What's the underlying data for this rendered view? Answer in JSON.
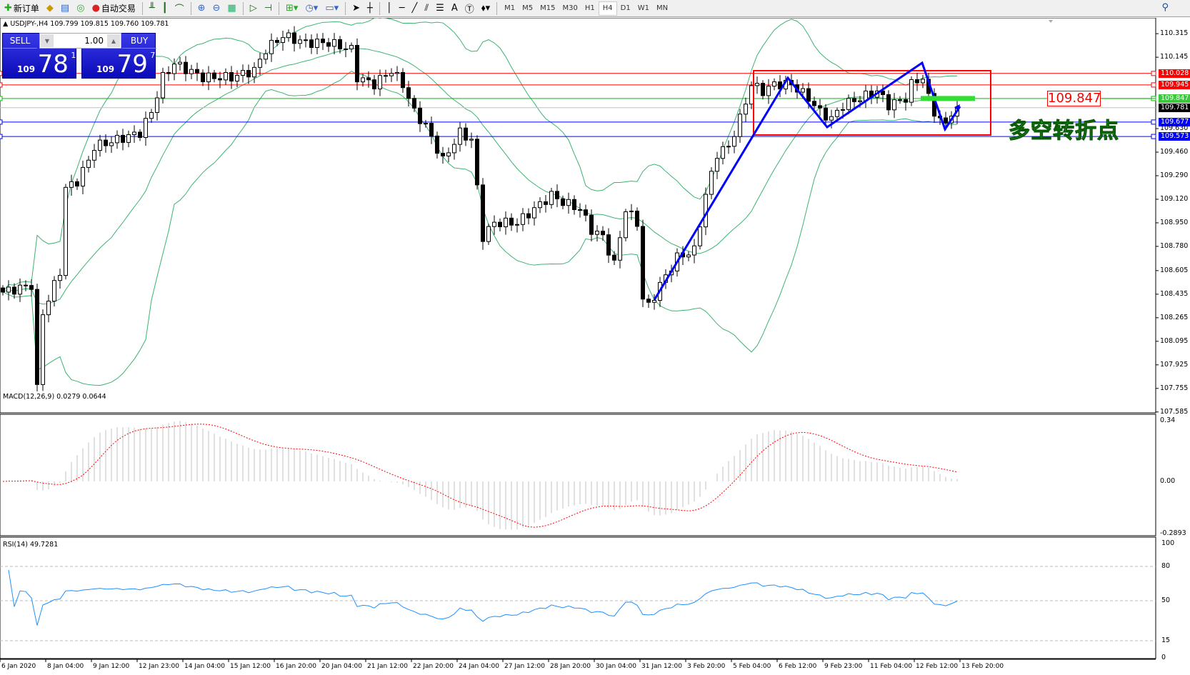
{
  "toolbar": {
    "new_order": "新订单",
    "auto_trading": "自动交易",
    "timeframes": [
      "M1",
      "M5",
      "M15",
      "M30",
      "H1",
      "H4",
      "D1",
      "W1",
      "MN"
    ],
    "active_timeframe": "H4"
  },
  "chart_header": "USDJPY-,H4  109.799 109.815 109.760 109.781",
  "one_click": {
    "sell_label": "SELL",
    "buy_label": "BUY",
    "lot": "1.00",
    "sell_small": "109",
    "sell_big": "78",
    "sell_pip": "1",
    "buy_small": "109",
    "buy_big": "79",
    "buy_pip": "7"
  },
  "price_axis": [
    "110.315",
    "110.145",
    "109.460",
    "109.290",
    "109.120",
    "108.950",
    "108.780",
    "108.605",
    "108.435",
    "108.265",
    "108.095",
    "107.925",
    "107.755",
    "107.585",
    "109.630"
  ],
  "levels": [
    {
      "value": "110.028",
      "color": "#ff0000"
    },
    {
      "value": "109.945",
      "color": "#ff0000"
    },
    {
      "value": "109.847",
      "color": "#00c000"
    },
    {
      "value": "109.677",
      "color": "#0000ff"
    },
    {
      "value": "109.573",
      "color": "#0000ff"
    }
  ],
  "bid": {
    "value": "109.781",
    "color": "#000000"
  },
  "annotation_price": "109.847",
  "annotation_text": "多空转折点",
  "macd": {
    "label": "MACD(12,26,9) 0.0279 0.0644",
    "axis": [
      "0.34",
      "0.00",
      "-0.2893"
    ]
  },
  "rsi": {
    "label": "RSI(14) 49.7281",
    "axis": [
      "100",
      "80",
      "50",
      "15",
      "0"
    ]
  },
  "time_axis": [
    "6 Jan 2020",
    "8 Jan 04:00",
    "9 Jan 12:00",
    "12 Jan 23:00",
    "14 Jan 04:00",
    "15 Jan 12:00",
    "16 Jan 20:00",
    "20 Jan 04:00",
    "21 Jan 12:00",
    "22 Jan 20:00",
    "24 Jan 04:00",
    "27 Jan 12:00",
    "28 Jan 20:00",
    "30 Jan 04:00",
    "31 Jan 12:00",
    "3 Feb 20:00",
    "5 Feb 04:00",
    "6 Feb 12:00",
    "9 Feb 23:00",
    "11 Feb 04:00",
    "12 Feb 12:00",
    "13 Feb 20:00"
  ],
  "close_keypoints": [
    [
      0,
      108.45
    ],
    [
      5,
      108.5
    ],
    [
      6,
      107.75
    ],
    [
      7,
      108.3
    ],
    [
      8,
      108.4
    ],
    [
      10,
      108.6
    ],
    [
      11,
      109.2
    ],
    [
      13,
      109.25
    ],
    [
      15,
      109.4
    ],
    [
      16,
      109.5
    ],
    [
      20,
      109.55
    ],
    [
      24,
      109.6
    ],
    [
      26,
      109.75
    ],
    [
      28,
      110.0
    ],
    [
      30,
      110.1
    ],
    [
      35,
      110.0
    ],
    [
      40,
      110.0
    ],
    [
      44,
      110.05
    ],
    [
      46,
      110.2
    ],
    [
      49,
      110.3
    ],
    [
      53,
      110.25
    ],
    [
      57,
      110.25
    ],
    [
      61,
      110.2
    ],
    [
      62,
      110.0
    ],
    [
      65,
      109.95
    ],
    [
      68,
      110.05
    ],
    [
      70,
      109.95
    ],
    [
      72,
      109.75
    ],
    [
      74,
      109.65
    ],
    [
      77,
      109.4
    ],
    [
      80,
      109.6
    ],
    [
      82,
      109.55
    ],
    [
      83,
      109.2
    ],
    [
      84,
      108.85
    ],
    [
      86,
      108.95
    ],
    [
      90,
      108.95
    ],
    [
      93,
      109.05
    ],
    [
      96,
      109.15
    ],
    [
      98,
      109.1
    ],
    [
      101,
      109.05
    ],
    [
      103,
      108.9
    ],
    [
      105,
      108.85
    ],
    [
      107,
      108.65
    ],
    [
      109,
      109.05
    ],
    [
      111,
      108.95
    ],
    [
      112,
      108.4
    ],
    [
      113,
      108.35
    ],
    [
      115,
      108.5
    ],
    [
      118,
      108.7
    ],
    [
      121,
      108.75
    ],
    [
      123,
      109.15
    ],
    [
      125,
      109.45
    ],
    [
      127,
      109.5
    ],
    [
      129,
      109.7
    ],
    [
      131,
      109.95
    ],
    [
      133,
      109.9
    ],
    [
      135,
      109.95
    ],
    [
      138,
      109.95
    ],
    [
      141,
      109.85
    ],
    [
      143,
      109.75
    ],
    [
      145,
      109.7
    ],
    [
      147,
      109.8
    ],
    [
      150,
      109.85
    ],
    [
      153,
      109.9
    ],
    [
      155,
      109.8
    ],
    [
      158,
      109.85
    ],
    [
      159,
      109.95
    ],
    [
      161,
      110.0
    ],
    [
      162,
      109.85
    ],
    [
      163,
      109.75
    ],
    [
      165,
      109.65
    ],
    [
      166,
      109.72
    ],
    [
      167,
      109.781
    ]
  ],
  "colors": {
    "bands": "#3cb371",
    "macd_hist": "#c0c0c0",
    "macd_signal": "#ff0000",
    "rsi": "#1e90ff",
    "zigzag": "#0000ff",
    "box": "#ff0000"
  }
}
